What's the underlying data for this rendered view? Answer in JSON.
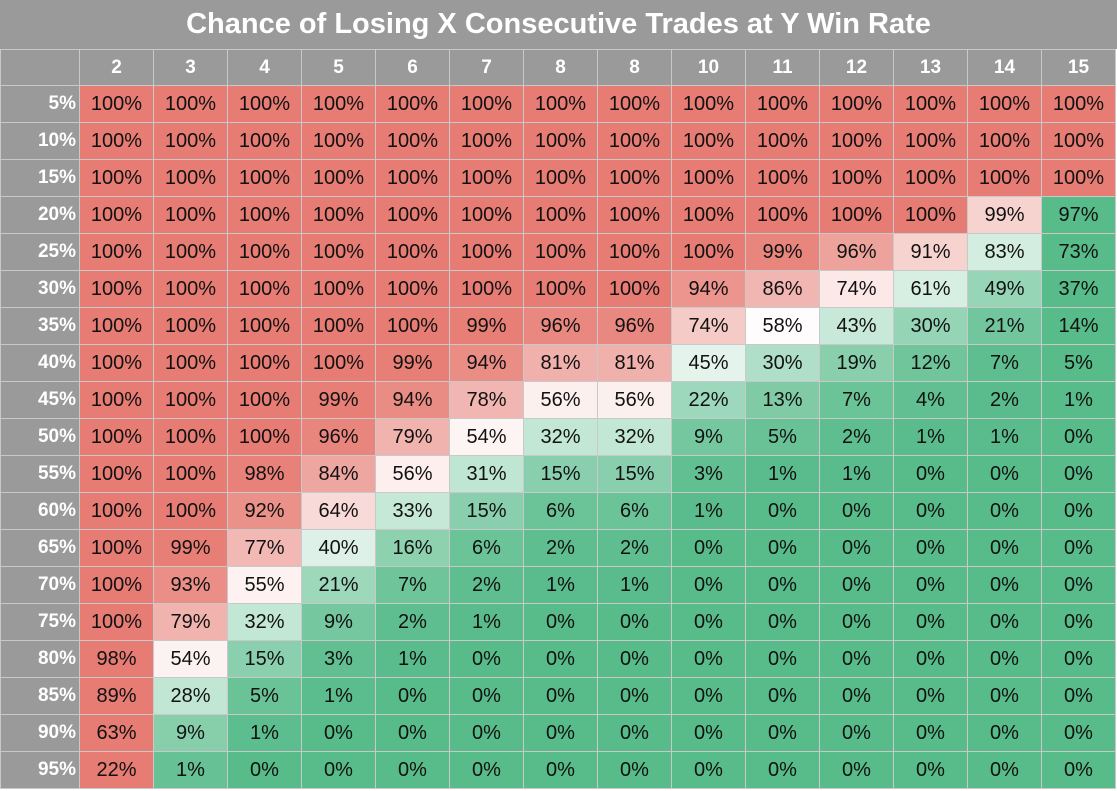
{
  "chart_data": {
    "type": "heatmap",
    "title": "Chance of Losing X Consecutive Trades at Y Win Rate",
    "x": [
      "2",
      "3",
      "4",
      "5",
      "6",
      "7",
      "8",
      "8",
      "10",
      "11",
      "12",
      "13",
      "14",
      "15"
    ],
    "y": [
      "5%",
      "10%",
      "15%",
      "20%",
      "25%",
      "30%",
      "35%",
      "40%",
      "45%",
      "50%",
      "55%",
      "60%",
      "65%",
      "70%",
      "75%",
      "80%",
      "85%",
      "90%",
      "95%"
    ],
    "values": [
      [
        100,
        100,
        100,
        100,
        100,
        100,
        100,
        100,
        100,
        100,
        100,
        100,
        100,
        100
      ],
      [
        100,
        100,
        100,
        100,
        100,
        100,
        100,
        100,
        100,
        100,
        100,
        100,
        100,
        100
      ],
      [
        100,
        100,
        100,
        100,
        100,
        100,
        100,
        100,
        100,
        100,
        100,
        100,
        100,
        100
      ],
      [
        100,
        100,
        100,
        100,
        100,
        100,
        100,
        100,
        100,
        100,
        100,
        100,
        99,
        97
      ],
      [
        100,
        100,
        100,
        100,
        100,
        100,
        100,
        100,
        100,
        99,
        96,
        91,
        83,
        73
      ],
      [
        100,
        100,
        100,
        100,
        100,
        100,
        100,
        100,
        94,
        86,
        74,
        61,
        49,
        37
      ],
      [
        100,
        100,
        100,
        100,
        100,
        99,
        96,
        96,
        74,
        58,
        43,
        30,
        21,
        14
      ],
      [
        100,
        100,
        100,
        100,
        99,
        94,
        81,
        81,
        45,
        30,
        19,
        12,
        7,
        5
      ],
      [
        100,
        100,
        100,
        99,
        94,
        78,
        56,
        56,
        22,
        13,
        7,
        4,
        2,
        1
      ],
      [
        100,
        100,
        100,
        96,
        79,
        54,
        32,
        32,
        9,
        5,
        2,
        1,
        1,
        0
      ],
      [
        100,
        100,
        98,
        84,
        56,
        31,
        15,
        15,
        3,
        1,
        1,
        0,
        0,
        0
      ],
      [
        100,
        100,
        92,
        64,
        33,
        15,
        6,
        6,
        1,
        0,
        0,
        0,
        0,
        0
      ],
      [
        100,
        99,
        77,
        40,
        16,
        6,
        2,
        2,
        0,
        0,
        0,
        0,
        0,
        0
      ],
      [
        100,
        93,
        55,
        21,
        7,
        2,
        1,
        1,
        0,
        0,
        0,
        0,
        0,
        0
      ],
      [
        100,
        79,
        32,
        9,
        2,
        1,
        0,
        0,
        0,
        0,
        0,
        0,
        0,
        0
      ],
      [
        98,
        54,
        15,
        3,
        1,
        0,
        0,
        0,
        0,
        0,
        0,
        0,
        0,
        0
      ],
      [
        89,
        28,
        5,
        1,
        0,
        0,
        0,
        0,
        0,
        0,
        0,
        0,
        0,
        0
      ],
      [
        63,
        9,
        1,
        0,
        0,
        0,
        0,
        0,
        0,
        0,
        0,
        0,
        0,
        0
      ],
      [
        22,
        1,
        0,
        0,
        0,
        0,
        0,
        0,
        0,
        0,
        0,
        0,
        0,
        0
      ]
    ],
    "value_suffix": "%",
    "colors": {
      "high": "#e67c73",
      "mid": "#ffffff",
      "low": "#57bb8a"
    }
  }
}
